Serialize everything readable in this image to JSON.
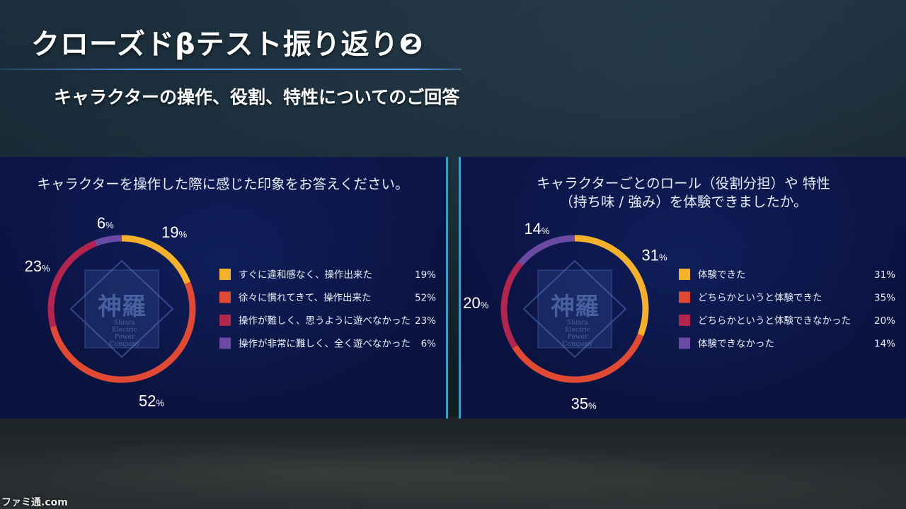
{
  "header": {
    "title": "クローズドβテスト振り返り❷",
    "subtitle": "キャラクターの操作、役割、特性についてのご回答"
  },
  "colors": {
    "slice_1": "#f6b12c",
    "slice_2": "#e04a35",
    "slice_3": "#b1254f",
    "slice_4": "#6b4aa6"
  },
  "emblem": {
    "kanji": "神羅",
    "text": "Shinra Electric Power Company"
  },
  "chart_data": [
    {
      "type": "pie",
      "donut": true,
      "question": "キャラクターを操作した際に感じた印象をお答えください。",
      "labels": [
        "すぐに違和感なく、操作出来た",
        "徐々に慣れてきて、操作出来た",
        "操作が難しく、思うように遊べなかった",
        "操作が非常に難しく、全く遊べなかった"
      ],
      "values": [
        19,
        52,
        23,
        6
      ],
      "unit": "%",
      "legend": "right"
    },
    {
      "type": "pie",
      "donut": true,
      "question_lines": [
        "キャラクターごとのロール（役割分担）や 特性",
        "（持ち味 / 強み）を体験できましたか。"
      ],
      "labels": [
        "体験できた",
        "どちらかというと体験できた",
        "どちらかというと体験できなかった",
        "体験できなかった"
      ],
      "values": [
        31,
        35,
        20,
        14
      ],
      "unit": "%",
      "legend": "right"
    }
  ],
  "watermark": "ファミ通.com"
}
